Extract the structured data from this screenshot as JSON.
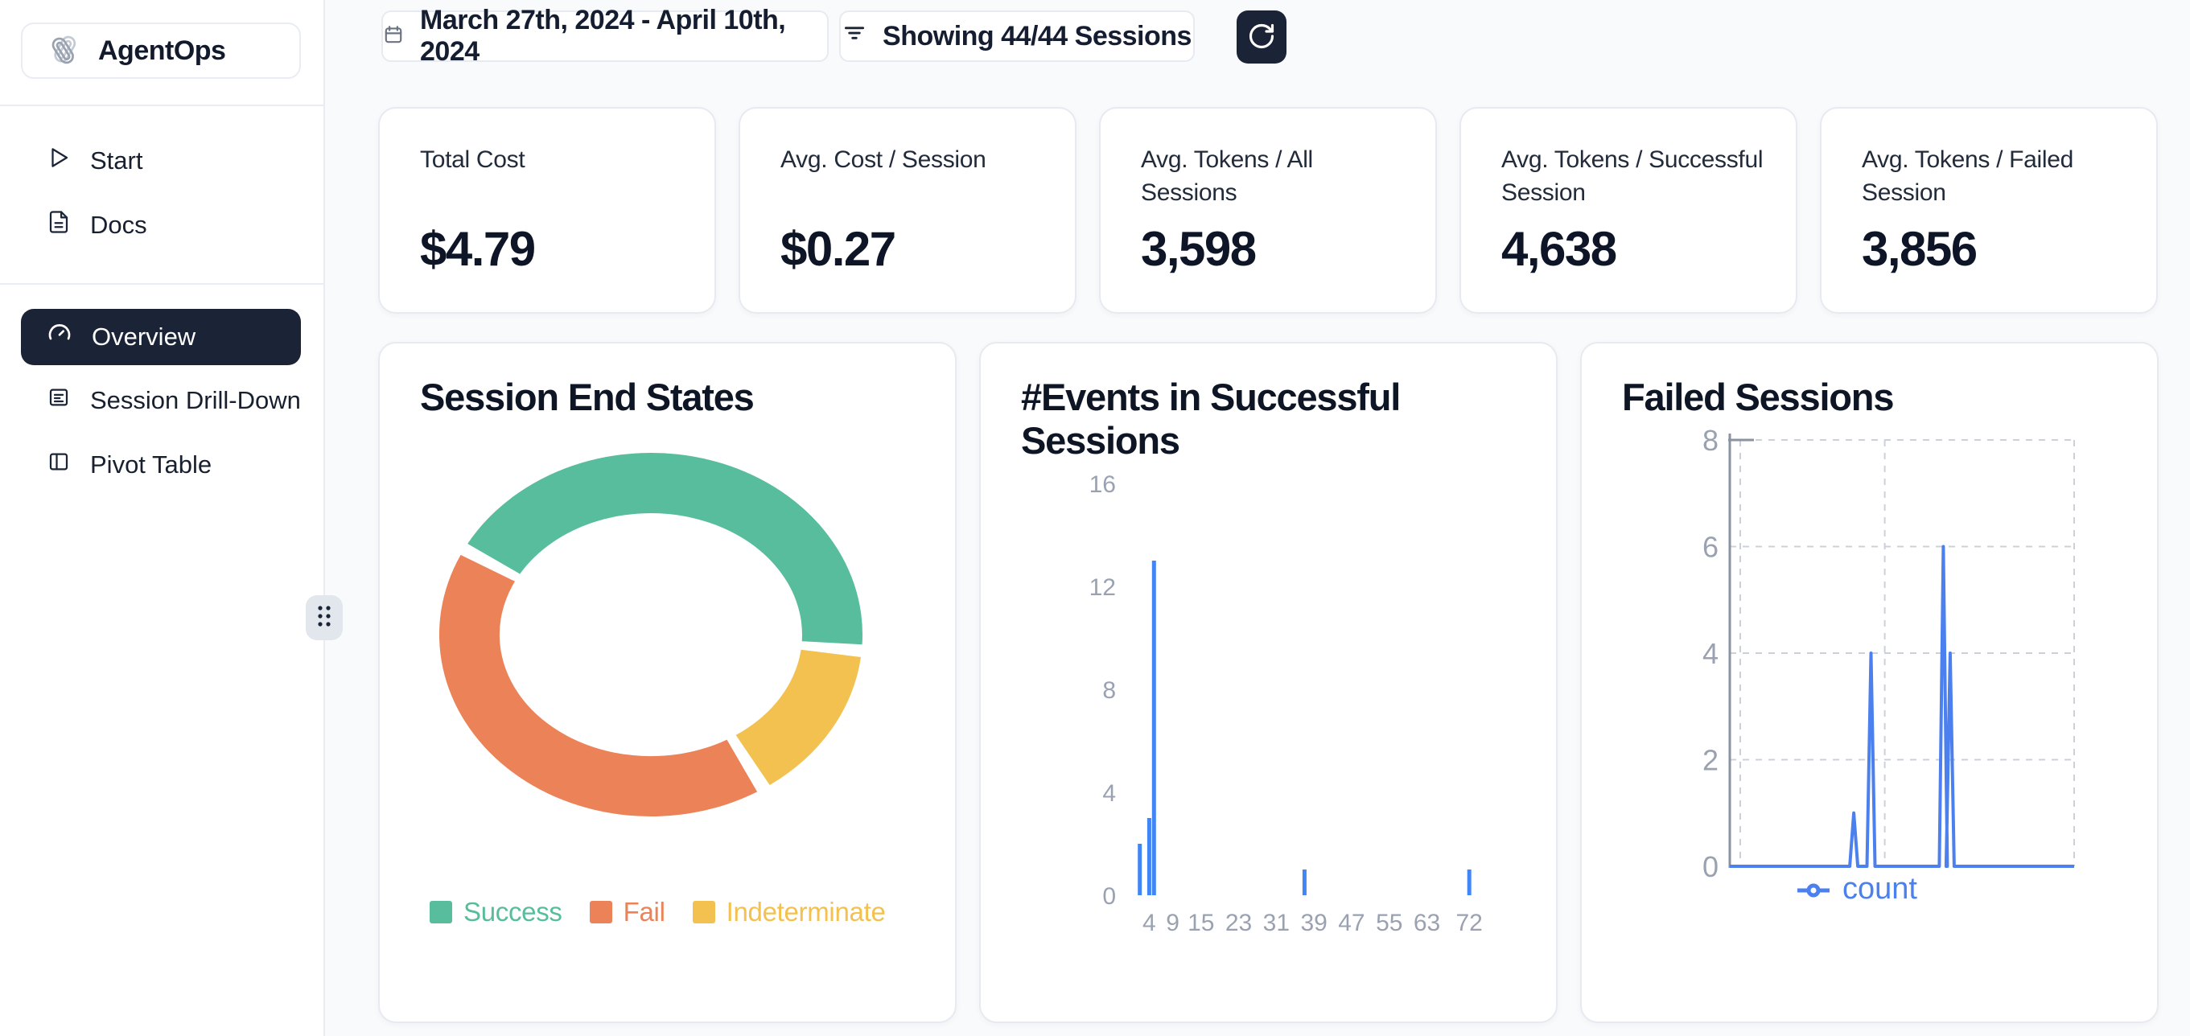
{
  "app": {
    "name": "AgentOps",
    "logo_icon": "paperclips-icon"
  },
  "sidebar": {
    "items_top": [
      {
        "label": "Start",
        "icon": "play-icon"
      },
      {
        "label": "Docs",
        "icon": "document-icon"
      }
    ],
    "items_main": [
      {
        "label": "Overview",
        "icon": "gauge-icon",
        "active": true
      },
      {
        "label": "Session Drill-Down",
        "icon": "list-box-icon",
        "active": false
      },
      {
        "label": "Pivot Table",
        "icon": "panel-left-icon",
        "active": false
      }
    ]
  },
  "toolbar": {
    "date_range": "March 27th, 2024 - April 10th, 2024",
    "date_icon": "calendar-icon",
    "sessions_filter": "Showing 44/44 Sessions",
    "filter_icon": "filter-icon",
    "refresh_icon": "refresh-icon"
  },
  "stats": [
    {
      "label": "Total Cost",
      "value": "$4.79"
    },
    {
      "label": "Avg. Cost / Session",
      "value": "$0.27"
    },
    {
      "label": "Avg. Tokens / All Sessions",
      "value": "3,598"
    },
    {
      "label": "Avg. Tokens / Successful Session",
      "value": "4,638"
    },
    {
      "label": "Avg. Tokens / Failed Session",
      "value": "3,856"
    }
  ],
  "colors": {
    "accent_dark": "#1b2336",
    "page_bg": "#f8fafc",
    "card_border": "#e7ebf1",
    "axis_text": "#9aa2b1",
    "grid_dash": "#ccd1d9",
    "bar_blue": "#4285f4",
    "line_blue": "#4b80ee"
  },
  "chart_data": [
    {
      "type": "pie",
      "donut": true,
      "title": "Session End States",
      "slices": [
        {
          "label": "Success",
          "percent": 44,
          "color": "#57bd9c"
        },
        {
          "label": "Fail",
          "percent": 42,
          "color": "#ec8257"
        },
        {
          "label": "Indeterminate",
          "percent": 14,
          "color": "#f2c14f"
        }
      ],
      "draw_order": [
        0,
        2,
        1
      ],
      "start_angle_deg": 300,
      "pad_deg": 4,
      "legend_position": "bottom"
    },
    {
      "type": "bar",
      "title": "#Events in Successful Sessions",
      "x": [
        2,
        4,
        5,
        37,
        72
      ],
      "values": [
        2,
        3,
        13,
        1,
        1
      ],
      "x_ticks": [
        4,
        9,
        15,
        23,
        31,
        39,
        47,
        55,
        63,
        72
      ],
      "y_ticks": [
        0,
        4,
        8,
        12,
        16
      ],
      "xlim": [
        0,
        76
      ],
      "ylim": [
        0,
        16
      ],
      "grid": false,
      "bar_color": "#4285f4"
    },
    {
      "type": "line",
      "title": "Failed Sessions",
      "series": [
        {
          "name": "count",
          "color": "#4b80ee"
        }
      ],
      "spikes": [
        {
          "x_frac": 0.36,
          "value": 1
        },
        {
          "x_frac": 0.41,
          "value": 4
        },
        {
          "x_frac": 0.62,
          "value": 6
        },
        {
          "x_frac": 0.64,
          "value": 4
        }
      ],
      "baseline_value": 0,
      "y_ticks": [
        0,
        2,
        4,
        6,
        8
      ],
      "ylim": [
        0,
        8
      ],
      "grid": "dashed",
      "legend_position": "bottom"
    }
  ]
}
